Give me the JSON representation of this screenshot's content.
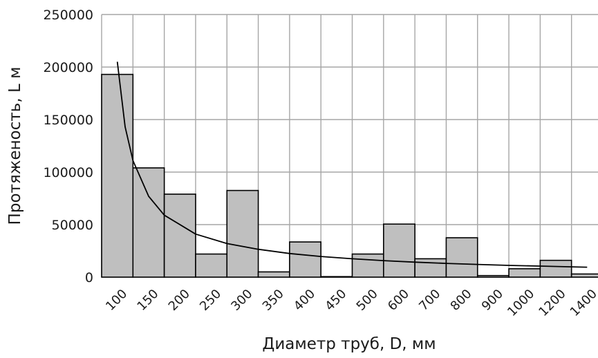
{
  "chart_data": {
    "type": "bar",
    "title": "",
    "xlabel": "Диаметр труб, D, мм",
    "ylabel": "Протяженость, L м",
    "categories": [
      "100",
      "150",
      "200",
      "250",
      "300",
      "350",
      "400",
      "450",
      "500",
      "600",
      "700",
      "800",
      "900",
      "1000",
      "1200",
      "1400"
    ],
    "values": [
      193000,
      104000,
      79000,
      22000,
      82500,
      5000,
      33500,
      500,
      22000,
      50500,
      17500,
      37500,
      1500,
      8000,
      16000,
      3000
    ],
    "trendline": {
      "type": "power",
      "x": [
        0.5,
        0.75,
        1,
        1.5,
        2,
        3,
        4,
        5,
        6,
        7,
        8,
        9,
        10,
        11,
        12,
        13,
        14,
        15,
        15.5
      ],
      "y": [
        205000,
        143000,
        111000,
        77000,
        59000,
        41000,
        32000,
        26500,
        22500,
        19700,
        17500,
        15700,
        14300,
        13100,
        12100,
        11200,
        10500,
        9800,
        9500
      ]
    },
    "ylim": [
      0,
      250000
    ],
    "yticks": [
      0,
      50000,
      100000,
      150000,
      200000,
      250000
    ],
    "grid": true,
    "colors": {
      "bar": "#bfbfbf",
      "bar_edge": "#000000",
      "grid": "#a6a6a6",
      "trendline": "#000000"
    }
  }
}
